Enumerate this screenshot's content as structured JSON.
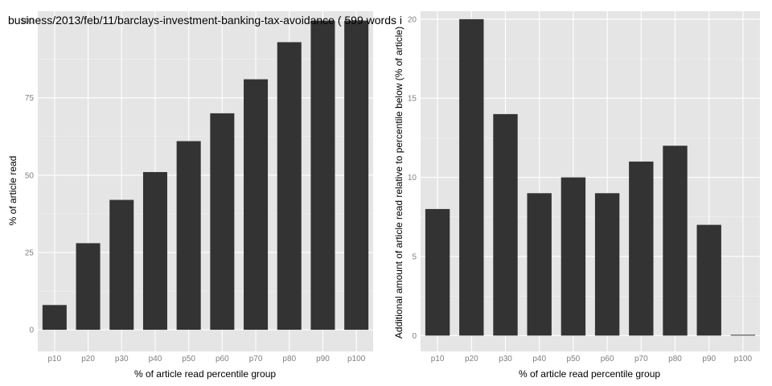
{
  "page_title": "business/2013/feb/11/barclays-investment-banking-tax-avoidance ( 599 words i",
  "colors": {
    "panel_bg": "#E5E5E5",
    "grid_major": "#FFFFFF",
    "grid_minor": "#F2F2F2",
    "bar_fill": "#333333",
    "tick_text": "#7F7F7F"
  },
  "chart_data": [
    {
      "type": "bar",
      "title": "business/2013/feb/11/barclays-investment-banking-tax-avoidance ( 599 words i",
      "xlabel": "% of article read percentile group",
      "ylabel": "% of article read",
      "categories": [
        "p10",
        "p20",
        "p30",
        "p40",
        "p50",
        "p60",
        "p70",
        "p80",
        "p90",
        "p100"
      ],
      "values": [
        8,
        28,
        42,
        51,
        61,
        70,
        81,
        93,
        100,
        100
      ],
      "ylim": [
        -7,
        103
      ],
      "yticks": [
        0,
        25,
        50,
        75,
        100
      ],
      "grid": true
    },
    {
      "type": "bar",
      "xlabel": "% of article read percentile group",
      "ylabel": "Additional amount of article read relative to percentile below (% of article)",
      "categories": [
        "p10",
        "p20",
        "p30",
        "p40",
        "p50",
        "p60",
        "p70",
        "p80",
        "p90",
        "p100"
      ],
      "values": [
        8,
        20,
        14,
        9,
        10,
        9,
        11,
        12,
        7,
        0
      ],
      "ylim": [
        -1,
        20.5
      ],
      "yticks": [
        0,
        5,
        10,
        15,
        20
      ],
      "grid": true
    }
  ]
}
